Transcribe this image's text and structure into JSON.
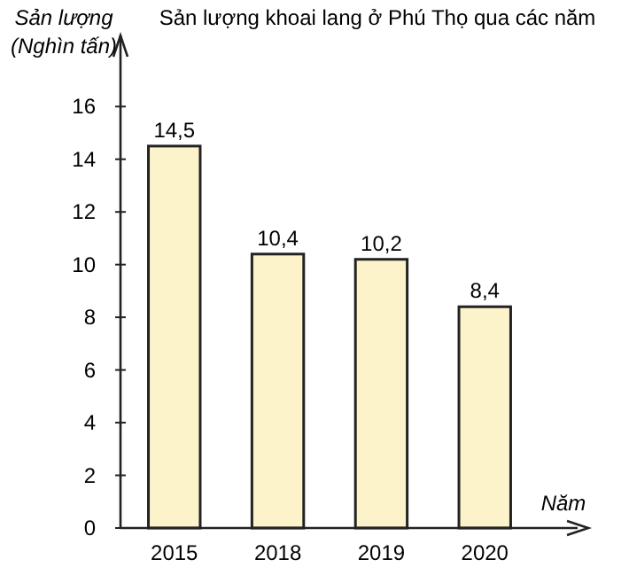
{
  "chart_data": {
    "type": "bar",
    "title": "Sản lượng khoai lang ở Phú Thọ qua các năm",
    "ylabel": "Sản lượng\n(Nghìn tấn)",
    "xlabel": "Năm",
    "categories": [
      "2015",
      "2018",
      "2019",
      "2020"
    ],
    "values": [
      14.5,
      10.4,
      10.2,
      8.4
    ],
    "value_labels": [
      "14,5",
      "10,4",
      "10,2",
      "8,4"
    ],
    "color": "#fdf3cb",
    "ylim": [
      0,
      18.7
    ],
    "yticks": [
      0,
      2,
      4,
      6,
      8,
      10,
      12,
      14,
      16
    ],
    "grid": false
  }
}
